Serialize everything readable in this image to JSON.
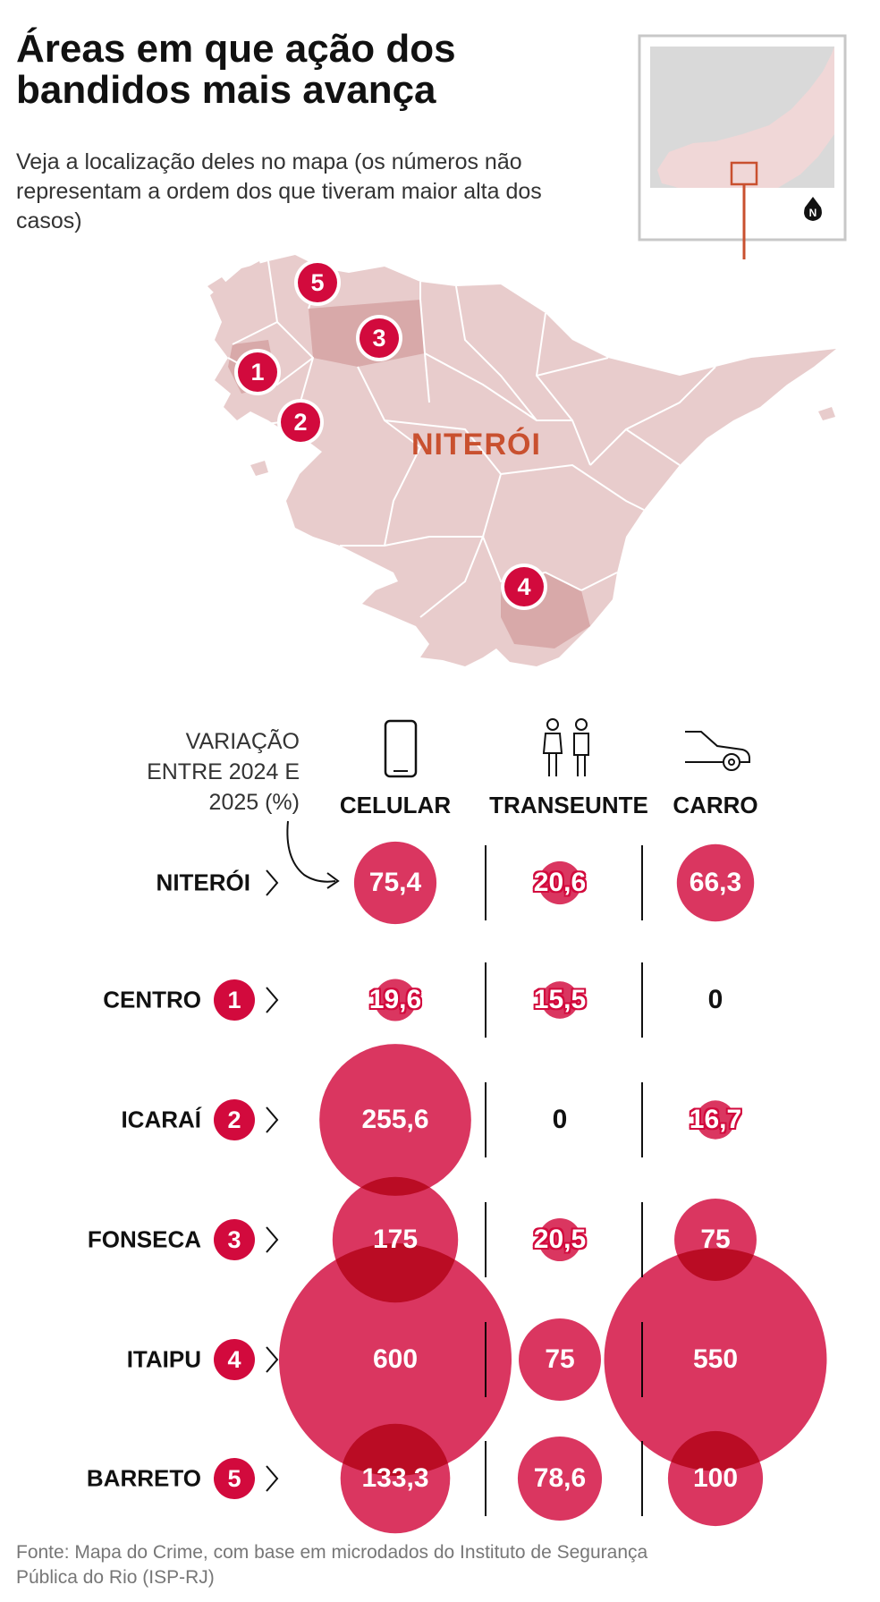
{
  "header": {
    "title": "Áreas em que ação dos bandidos mais avança",
    "subtitle": "Veja a localização deles no mapa (os números não representam a ordem dos que tiveram maior alta dos casos)"
  },
  "map": {
    "city_label": "NITERÓI",
    "north_label": "N",
    "markers": [
      "1",
      "2",
      "3",
      "4",
      "5"
    ],
    "colors": {
      "land": "#e8cccc",
      "land_dark": "#d8a9a9",
      "marker": "#d20a3d",
      "arrow": "#c9502f"
    }
  },
  "table": {
    "variation_label": "VARIAÇÃO ENTRE 2024 E 2025 (%)",
    "icons": [
      "phone-icon",
      "pedestrians-icon",
      "car-icon"
    ]
  },
  "chart_data": {
    "type": "bubble",
    "columns": [
      "CELULAR",
      "TRANSEUNTE",
      "CARRO"
    ],
    "rows": [
      {
        "name": "NITERÓI",
        "marker": "",
        "values": [
          75.4,
          20.6,
          66.3
        ],
        "labels": [
          "75,4",
          "20,6",
          "66,3"
        ]
      },
      {
        "name": "CENTRO",
        "marker": "1",
        "values": [
          19.6,
          15.5,
          0
        ],
        "labels": [
          "19,6",
          "15,5",
          "0"
        ]
      },
      {
        "name": "ICARAÍ",
        "marker": "2",
        "values": [
          255.6,
          0,
          16.7
        ],
        "labels": [
          "255,6",
          "0",
          "16,7"
        ]
      },
      {
        "name": "FONSECA",
        "marker": "3",
        "values": [
          175,
          20.5,
          75
        ],
        "labels": [
          "175",
          "20,5",
          "75"
        ]
      },
      {
        "name": "ITAIPU",
        "marker": "4",
        "values": [
          600,
          75,
          550
        ],
        "labels": [
          "600",
          "75",
          "550"
        ]
      },
      {
        "name": "BARRETO",
        "marker": "5",
        "values": [
          133.3,
          78.6,
          100
        ],
        "labels": [
          "133,3",
          "78,6",
          "100"
        ]
      }
    ],
    "bubble_color": "#d20a3d"
  },
  "footer": {
    "source": "Fonte: Mapa do Crime, com base em microdados do Instituto de Segurança Pública do Rio (ISP-RJ)"
  }
}
